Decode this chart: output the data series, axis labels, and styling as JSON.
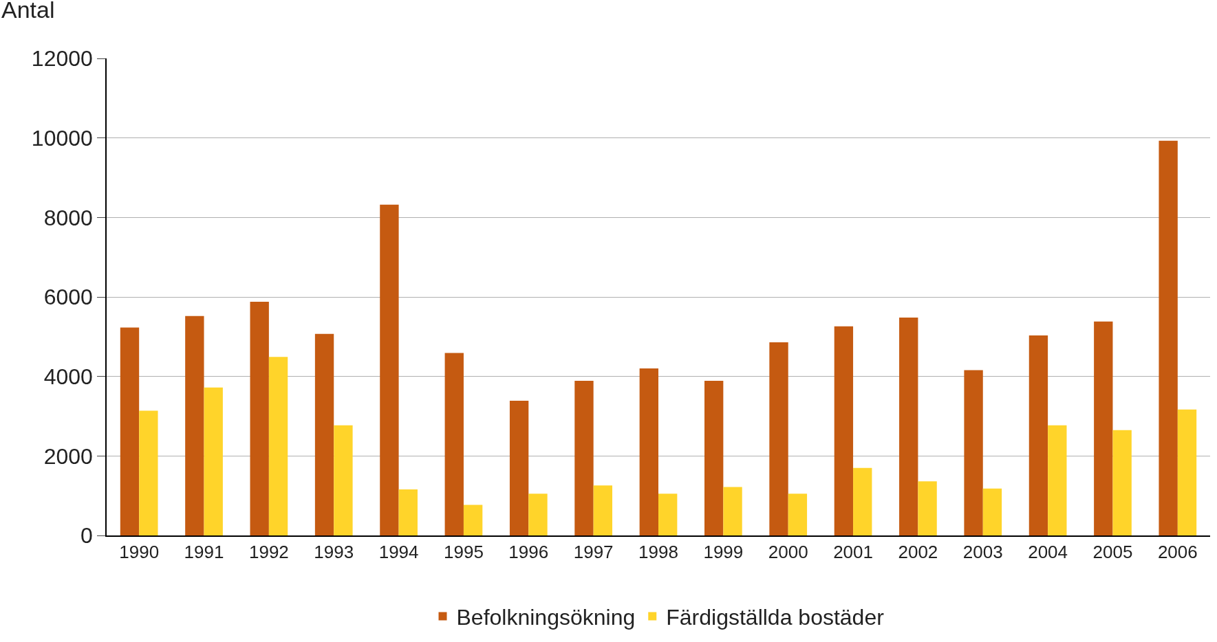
{
  "chart_data": {
    "type": "bar",
    "ylabel": "Antal",
    "categories": [
      "1990",
      "1991",
      "1992",
      "1993",
      "1994",
      "1995",
      "1996",
      "1997",
      "1998",
      "1999",
      "2000",
      "2001",
      "2002",
      "2003",
      "2004",
      "2005",
      "2006"
    ],
    "series": [
      {
        "name": "Befolkningsökning",
        "color": "#c55a11",
        "values": [
          5230,
          5520,
          5880,
          5070,
          8320,
          4590,
          3390,
          3890,
          4200,
          3890,
          4860,
          5260,
          5480,
          4160,
          5030,
          5380,
          9930
        ]
      },
      {
        "name": "Färdigställda bostäder",
        "color": "#ffd42a",
        "values": [
          3140,
          3720,
          4490,
          2770,
          1160,
          770,
          1050,
          1260,
          1050,
          1220,
          1050,
          1700,
          1360,
          1180,
          2770,
          2650,
          3170
        ]
      }
    ],
    "ylim": [
      0,
      12000
    ],
    "yticks": [
      0,
      2000,
      4000,
      6000,
      8000,
      10000,
      12000
    ],
    "grid": "y",
    "legend": "bottom"
  }
}
